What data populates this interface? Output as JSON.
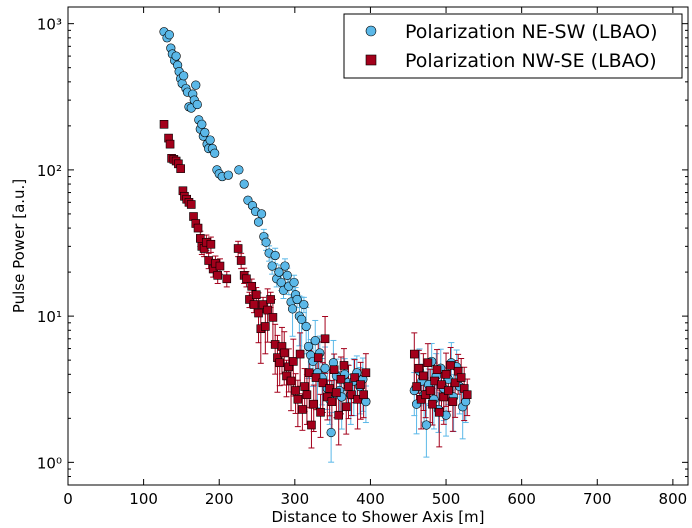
{
  "chart_data": {
    "type": "scatter",
    "title": "",
    "xlabel": "Distance to Shower Axis [m]",
    "ylabel": "Pulse Power [a.u.]",
    "xlim": [
      0,
      820
    ],
    "ylim": [
      0.7,
      1300
    ],
    "yscale": "log",
    "x_ticks": [
      0,
      100,
      200,
      300,
      400,
      500,
      600,
      700,
      800
    ],
    "x_tick_labels": [
      "0",
      "100",
      "200",
      "300",
      "400",
      "500",
      "600",
      "700",
      "800"
    ],
    "y_ticks": [
      1,
      10,
      100,
      1000
    ],
    "y_tick_labels": [
      "10⁰",
      "10¹",
      "10²",
      "10³"
    ],
    "legend_position": "top-right",
    "series": [
      {
        "name": "Polarization NE-SW (LBAO)",
        "marker": "circle",
        "color": "#5bb8e8",
        "points": [
          [
            127,
            880
          ],
          [
            131,
            800
          ],
          [
            134,
            840
          ],
          [
            136,
            680
          ],
          [
            138,
            620
          ],
          [
            141,
            560
          ],
          [
            143,
            600
          ],
          [
            145,
            520
          ],
          [
            147,
            470
          ],
          [
            149,
            420
          ],
          [
            151,
            390
          ],
          [
            153,
            440
          ],
          [
            156,
            360
          ],
          [
            158,
            340
          ],
          [
            160,
            270
          ],
          [
            163,
            265
          ],
          [
            165,
            330
          ],
          [
            167,
            300
          ],
          [
            169,
            380
          ],
          [
            171,
            280
          ],
          [
            173,
            220
          ],
          [
            175,
            190
          ],
          [
            177,
            205
          ],
          [
            179,
            170
          ],
          [
            181,
            180
          ],
          [
            184,
            150
          ],
          [
            186,
            140
          ],
          [
            188,
            160
          ],
          [
            191,
            140
          ],
          [
            194,
            130
          ],
          [
            197,
            100
          ],
          [
            200,
            94
          ],
          [
            204,
            90
          ],
          [
            212,
            92
          ],
          [
            226,
            100
          ],
          [
            233,
            80
          ],
          [
            238,
            62
          ],
          [
            244,
            57
          ],
          [
            248,
            52
          ],
          [
            252,
            44
          ],
          [
            256,
            50
          ],
          [
            259,
            35
          ],
          [
            262,
            32
          ],
          [
            266,
            27
          ],
          [
            270,
            22
          ],
          [
            274,
            26
          ],
          [
            276,
            18
          ],
          [
            279,
            20
          ],
          [
            282,
            17
          ],
          [
            285,
            15
          ],
          [
            287,
            22
          ],
          [
            290,
            19
          ],
          [
            292,
            16
          ],
          [
            295,
            12.5
          ],
          [
            297,
            11.2
          ],
          [
            299,
            17
          ],
          [
            301,
            14
          ],
          [
            303,
            13
          ],
          [
            306,
            10
          ],
          [
            309,
            9.5
          ],
          [
            312,
            12
          ],
          [
            315,
            8.5
          ],
          [
            318,
            6.2
          ],
          [
            321,
            5.4
          ],
          [
            324,
            4.9
          ],
          [
            327,
            6.8
          ],
          [
            330,
            4.1
          ],
          [
            333,
            5.6
          ],
          [
            336,
            3.8
          ],
          [
            340,
            4.4
          ],
          [
            343,
            3.2
          ],
          [
            346,
            2.7
          ],
          [
            348,
            1.6
          ],
          [
            351,
            4.8
          ],
          [
            355,
            3.9
          ],
          [
            359,
            3.1
          ],
          [
            362,
            2.8
          ],
          [
            366,
            4.0
          ],
          [
            370,
            3.5
          ],
          [
            374,
            2.9
          ],
          [
            378,
            3.6
          ],
          [
            382,
            4.1
          ],
          [
            386,
            3.3
          ],
          [
            390,
            3.7
          ],
          [
            394,
            2.6
          ],
          [
            458,
            3.1
          ],
          [
            461,
            2.5
          ],
          [
            465,
            4.2
          ],
          [
            468,
            3.6
          ],
          [
            471,
            2.9
          ],
          [
            474,
            1.8
          ],
          [
            477,
            3.4
          ],
          [
            481,
            4.9
          ],
          [
            484,
            2.7
          ],
          [
            487,
            3.9
          ],
          [
            490,
            2.3
          ],
          [
            493,
            4.4
          ],
          [
            497,
            3.2
          ],
          [
            500,
            2.1
          ],
          [
            503,
            3.7
          ],
          [
            507,
            4.8
          ],
          [
            510,
            2.8
          ],
          [
            514,
            4.5
          ],
          [
            518,
            3.3
          ],
          [
            522,
            2.4
          ],
          [
            526,
            2.6
          ]
        ]
      },
      {
        "name": "Polarization NW-SE (LBAO)",
        "marker": "square",
        "color": "#a3001b",
        "points": [
          [
            127,
            205
          ],
          [
            133,
            165
          ],
          [
            135,
            150
          ],
          [
            137,
            120
          ],
          [
            140,
            118
          ],
          [
            143,
            115
          ],
          [
            146,
            110
          ],
          [
            149,
            102
          ],
          [
            152,
            72
          ],
          [
            154,
            66
          ],
          [
            157,
            63
          ],
          [
            160,
            60
          ],
          [
            163,
            58
          ],
          [
            166,
            48
          ],
          [
            169,
            43
          ],
          [
            172,
            40
          ],
          [
            175,
            34
          ],
          [
            177,
            30
          ],
          [
            180,
            29
          ],
          [
            183,
            32
          ],
          [
            186,
            24
          ],
          [
            189,
            31
          ],
          [
            192,
            21
          ],
          [
            195,
            23
          ],
          [
            198,
            19
          ],
          [
            201,
            22
          ],
          [
            210,
            18
          ],
          [
            225,
            29
          ],
          [
            229,
            24
          ],
          [
            233,
            19
          ],
          [
            236,
            18
          ],
          [
            240,
            13
          ],
          [
            243,
            16
          ],
          [
            246,
            12
          ],
          [
            249,
            14
          ],
          [
            252,
            10.5
          ],
          [
            255,
            8.2
          ],
          [
            258,
            12
          ],
          [
            261,
            8.5
          ],
          [
            264,
            11
          ],
          [
            268,
            13
          ],
          [
            271,
            9.8
          ],
          [
            274,
            6.4
          ],
          [
            277,
            5.2
          ],
          [
            280,
            4.8
          ],
          [
            283,
            6.2
          ],
          [
            286,
            5.6
          ],
          [
            289,
            3.9
          ],
          [
            292,
            4.5
          ],
          [
            295,
            3.6
          ],
          [
            298,
            4.9
          ],
          [
            301,
            3.1
          ],
          [
            304,
            2.7
          ],
          [
            307,
            5.5
          ],
          [
            310,
            2.3
          ],
          [
            313,
            3.3
          ],
          [
            316,
            2.9
          ],
          [
            319,
            4.1
          ],
          [
            322,
            1.8
          ],
          [
            325,
            2.5
          ],
          [
            328,
            3.8
          ],
          [
            331,
            5.2
          ],
          [
            334,
            2.2
          ],
          [
            337,
            3.5
          ],
          [
            340,
            7.0
          ],
          [
            343,
            2.8
          ],
          [
            346,
            3.2
          ],
          [
            349,
            2.6
          ],
          [
            352,
            4.3
          ],
          [
            355,
            3.0
          ],
          [
            358,
            2.1
          ],
          [
            361,
            3.7
          ],
          [
            365,
            4.6
          ],
          [
            368,
            2.4
          ],
          [
            371,
            3.3
          ],
          [
            375,
            2.9
          ],
          [
            379,
            3.8
          ],
          [
            383,
            2.7
          ],
          [
            387,
            3.4
          ],
          [
            391,
            2.9
          ],
          [
            394,
            4.1
          ],
          [
            458,
            5.5
          ],
          [
            461,
            3.3
          ],
          [
            464,
            4.4
          ],
          [
            467,
            2.7
          ],
          [
            470,
            3.9
          ],
          [
            473,
            2.9
          ],
          [
            476,
            4.8
          ],
          [
            479,
            3.1
          ],
          [
            482,
            2.5
          ],
          [
            485,
            3.6
          ],
          [
            488,
            4.3
          ],
          [
            491,
            2.2
          ],
          [
            494,
            3.4
          ],
          [
            497,
            2.8
          ],
          [
            500,
            4.0
          ],
          [
            503,
            3.1
          ],
          [
            506,
            4.6
          ],
          [
            509,
            2.6
          ],
          [
            512,
            3.5
          ],
          [
            516,
            4.2
          ],
          [
            520,
            3.8
          ],
          [
            524,
            3.2
          ],
          [
            528,
            2.9
          ]
        ]
      }
    ]
  }
}
